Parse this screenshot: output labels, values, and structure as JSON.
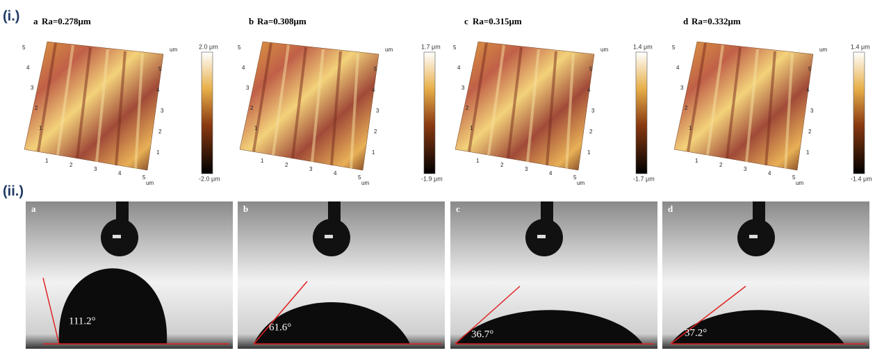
{
  "section_labels": [
    "(i.)",
    "(ii.)"
  ],
  "afm_panels": [
    {
      "label": "a",
      "ra": "Ra=0.278μm",
      "colorbar_max": "2.0 μm",
      "colorbar_min": "-2.0 μm"
    },
    {
      "label": "b",
      "ra": "Ra=0.308μm",
      "colorbar_max": "1.7 μm",
      "colorbar_min": "-1.9 μm"
    },
    {
      "label": "c",
      "ra": "Ra=0.315μm",
      "colorbar_max": "1.4 μm",
      "colorbar_min": "-1.7 μm"
    },
    {
      "label": "d",
      "ra": "Ra=0.332μm",
      "colorbar_max": "1.4 μm",
      "colorbar_min": "-1.4 μm"
    }
  ],
  "axis_ticks": [
    "1",
    "2",
    "3",
    "4",
    "5"
  ],
  "axis_unit": "um",
  "contact_panels": [
    {
      "label": "a",
      "angle": "111.2°"
    },
    {
      "label": "b",
      "angle": "61.6°"
    },
    {
      "label": "c",
      "angle": "36.7°"
    },
    {
      "label": "d",
      "angle": "37.2°"
    }
  ]
}
